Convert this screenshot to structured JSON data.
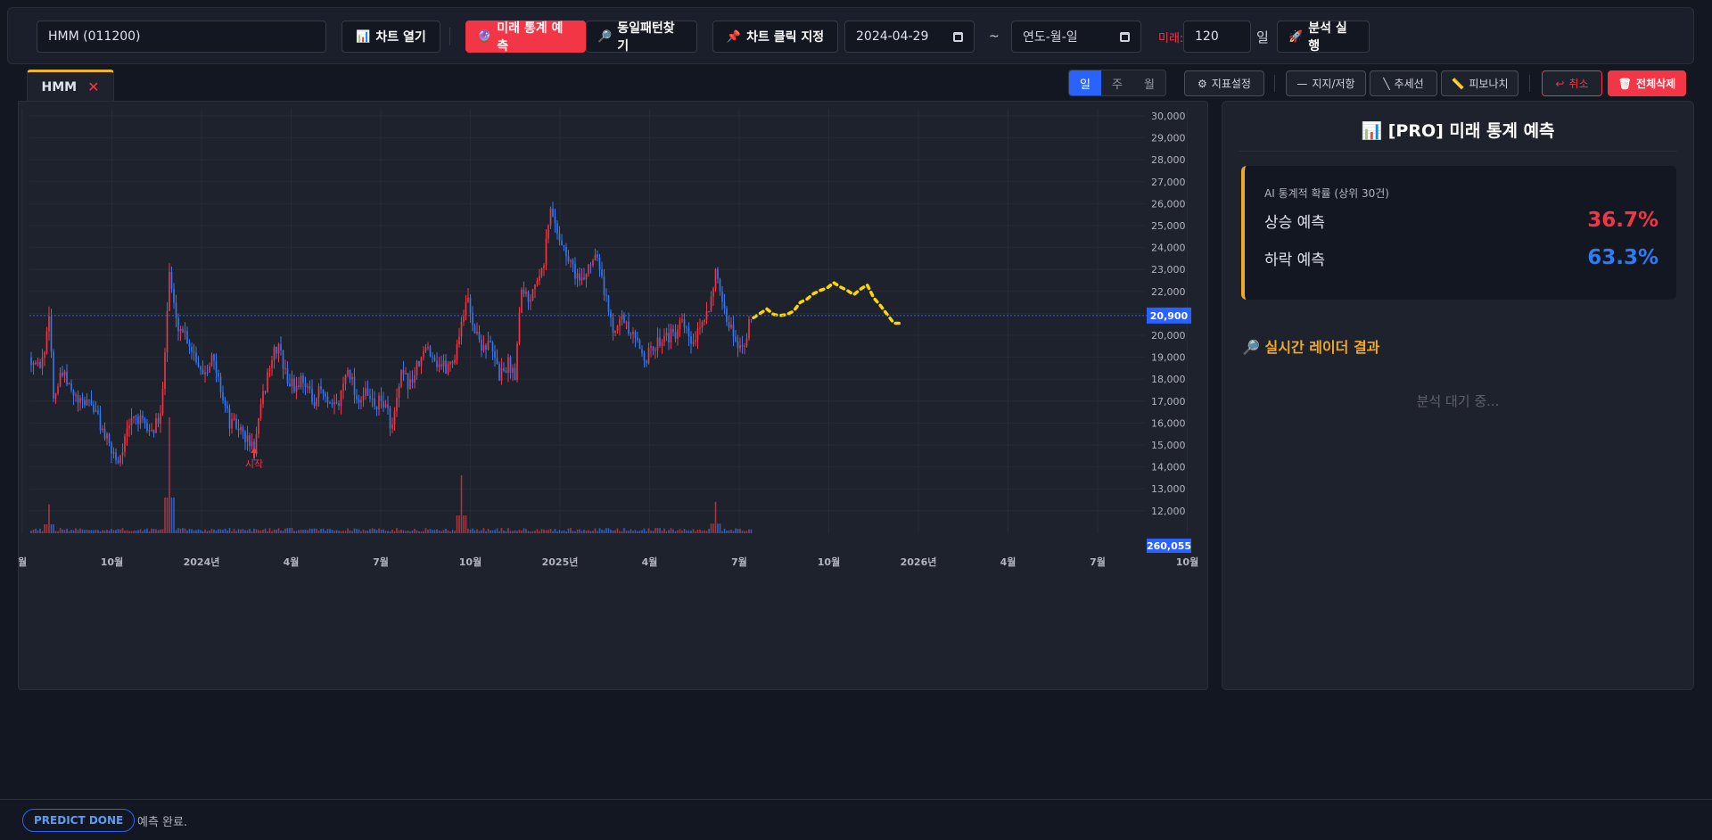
{
  "toolbar": {
    "symbol_value": "HMM (011200)",
    "open_chart_label": "차트 열기",
    "predict_label": "미래 통계 예측",
    "pattern_label": "동일패턴찾기",
    "click_label": "차트 클릭 지정",
    "start_date_value": "2024-04-29",
    "date_separator": "~",
    "end_date_placeholder": "연도-월-일",
    "future_label": "미래:",
    "future_days_value": "120",
    "future_unit": "일",
    "run_label": "분석 실행"
  },
  "tabs": [
    {
      "label": "HMM",
      "close": "✕"
    }
  ],
  "chart_controls": {
    "intervals": [
      {
        "label": "일",
        "active": true
      },
      {
        "label": "주",
        "active": false
      },
      {
        "label": "월",
        "active": false
      }
    ],
    "indicator_settings": "지표설정",
    "support_resistance": "지지/저항",
    "trendline": "추세선",
    "fibonacci": "피보나치",
    "cancel": "취소",
    "delete_all": "전체삭제"
  },
  "chart_data": {
    "type": "candlestick",
    "symbol": "HMM",
    "y_ticks": [
      30000,
      29000,
      28000,
      27000,
      26000,
      25000,
      24000,
      23000,
      22000,
      21000,
      20000,
      19000,
      18000,
      17000,
      16000,
      15000,
      14000,
      13000,
      12000
    ],
    "y_tick_labels": [
      "30,000",
      "29,000",
      "28,000",
      "27,000",
      "26,000",
      "25,000",
      "24,000",
      "23,000",
      "22,000",
      "21,000",
      "20,000",
      "19,000",
      "18,000",
      "17,000",
      "16,000",
      "15,000",
      "14,000",
      "13,000",
      "12,000"
    ],
    "ylim": [
      10900,
      31000
    ],
    "x_tick_labels": [
      "월",
      "10월",
      "2024년",
      "4월",
      "7월",
      "10월",
      "2025년",
      "4월",
      "7월",
      "10월",
      "2026년",
      "4월",
      "7월",
      "10월"
    ],
    "last_price": 20900,
    "last_price_label": "20,900",
    "last_volume_label": "260,055",
    "start_marker_label": "시작",
    "start_marker_price": 14800,
    "price_path": [
      [
        0,
        19000
      ],
      [
        3,
        18500
      ],
      [
        6,
        19200
      ],
      [
        8,
        21200
      ],
      [
        10,
        17200
      ],
      [
        14,
        18200
      ],
      [
        18,
        17400
      ],
      [
        22,
        16800
      ],
      [
        26,
        17100
      ],
      [
        30,
        16200
      ],
      [
        35,
        14900
      ],
      [
        39,
        14300
      ],
      [
        42,
        15200
      ],
      [
        46,
        16400
      ],
      [
        50,
        15900
      ],
      [
        54,
        15600
      ],
      [
        58,
        16200
      ],
      [
        62,
        22900
      ],
      [
        65,
        20600
      ],
      [
        69,
        20100
      ],
      [
        73,
        19200
      ],
      [
        77,
        18300
      ],
      [
        81,
        19000
      ],
      [
        85,
        17600
      ],
      [
        89,
        16000
      ],
      [
        93,
        15800
      ],
      [
        97,
        15200
      ],
      [
        100,
        14800
      ],
      [
        103,
        16600
      ],
      [
        107,
        18700
      ],
      [
        111,
        19600
      ],
      [
        114,
        18200
      ],
      [
        118,
        17600
      ],
      [
        122,
        18100
      ],
      [
        126,
        17000
      ],
      [
        130,
        17500
      ],
      [
        134,
        16600
      ],
      [
        138,
        16900
      ],
      [
        142,
        18700
      ],
      [
        146,
        17100
      ],
      [
        150,
        17300
      ],
      [
        154,
        16800
      ],
      [
        158,
        17000
      ],
      [
        162,
        15800
      ],
      [
        166,
        18100
      ],
      [
        170,
        17800
      ],
      [
        174,
        18700
      ],
      [
        178,
        19500
      ],
      [
        182,
        18800
      ],
      [
        186,
        18500
      ],
      [
        190,
        19000
      ],
      [
        193,
        20700
      ],
      [
        196,
        21600
      ],
      [
        199,
        20200
      ],
      [
        202,
        19600
      ],
      [
        206,
        19500
      ],
      [
        210,
        18200
      ],
      [
        214,
        18700
      ],
      [
        217,
        18300
      ],
      [
        220,
        22400
      ],
      [
        223,
        21600
      ],
      [
        227,
        22800
      ],
      [
        230,
        23500
      ],
      [
        233,
        25700
      ],
      [
        236,
        24800
      ],
      [
        240,
        23600
      ],
      [
        243,
        23100
      ],
      [
        247,
        22300
      ],
      [
        250,
        23200
      ],
      [
        254,
        23900
      ],
      [
        257,
        22000
      ],
      [
        261,
        20300
      ],
      [
        264,
        21000
      ],
      [
        268,
        20100
      ],
      [
        272,
        19600
      ],
      [
        276,
        19000
      ],
      [
        280,
        19500
      ],
      [
        284,
        20100
      ],
      [
        288,
        19900
      ],
      [
        292,
        20500
      ],
      [
        296,
        19600
      ],
      [
        300,
        20100
      ],
      [
        304,
        21400
      ],
      [
        307,
        22800
      ],
      [
        310,
        21200
      ],
      [
        314,
        20300
      ],
      [
        318,
        19500
      ],
      [
        320,
        19800
      ],
      [
        324,
        21000
      ]
    ],
    "price_x_max": 402,
    "forecast_path": [
      [
        324,
        20800
      ],
      [
        327,
        21000
      ],
      [
        330,
        21200
      ],
      [
        333,
        20950
      ],
      [
        336,
        20900
      ],
      [
        339,
        20950
      ],
      [
        342,
        21100
      ],
      [
        345,
        21500
      ],
      [
        348,
        21650
      ],
      [
        351,
        21900
      ],
      [
        354,
        22050
      ],
      [
        357,
        22150
      ],
      [
        360,
        22400
      ],
      [
        363,
        22200
      ],
      [
        366,
        22050
      ],
      [
        369,
        21850
      ],
      [
        372,
        22100
      ],
      [
        375,
        22300
      ],
      [
        378,
        21700
      ],
      [
        381,
        21350
      ],
      [
        384,
        20950
      ],
      [
        387,
        20550
      ],
      [
        390,
        20550
      ]
    ],
    "volume_spikes": [
      [
        8,
        0.25
      ],
      [
        62,
        1.0
      ],
      [
        193,
        0.5
      ],
      [
        307,
        0.27
      ]
    ]
  },
  "right_panel": {
    "title": "[PRO] 미래 통계 예측",
    "caption": "AI 통계적 확률 (상위 30건)",
    "up_label": "상승 예측",
    "up_value": "36.7%",
    "down_label": "하락 예측",
    "down_value": "63.3%",
    "radar_title": "실시간 레이더 결과",
    "radar_empty": "분석 대기 중..."
  },
  "status": {
    "badge": "PREDICT DONE",
    "message": "예측 완료."
  },
  "colors": {
    "up": "#f23645",
    "down": "#2962ff",
    "forecast": "#ffd600",
    "accent": "#f0a829"
  }
}
